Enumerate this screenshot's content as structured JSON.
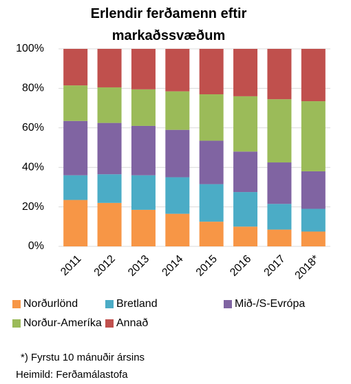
{
  "chart_data": {
    "type": "stacked_bar_100",
    "title": "Erlendir ferðamenn eftir markaðssvæðum",
    "categories": [
      "2011",
      "2012",
      "2013",
      "2014",
      "2015",
      "2016",
      "2017",
      "2018*"
    ],
    "series": [
      {
        "name": "Norðurlönd",
        "color": "#f79646",
        "values": [
          23.5,
          22,
          18.5,
          16.5,
          12.5,
          10,
          8.5,
          7.5
        ]
      },
      {
        "name": "Bretland",
        "color": "#4bacc6",
        "values": [
          12.5,
          14.5,
          17.5,
          18.5,
          19,
          17.5,
          13,
          11.5
        ]
      },
      {
        "name": "Mið-/S-Evrópa",
        "color": "#8064a2",
        "values": [
          27.5,
          26,
          25,
          24,
          22,
          20.5,
          21,
          19
        ]
      },
      {
        "name": "Norður-Ameríka",
        "color": "#9bbb59",
        "values": [
          18,
          18,
          18.5,
          19.5,
          23.5,
          28,
          32,
          35.5
        ]
      },
      {
        "name": "Annað",
        "color": "#c0504d",
        "values": [
          18.5,
          19.5,
          20.5,
          21.5,
          23,
          24,
          25.5,
          26.5
        ]
      }
    ],
    "ylim": [
      0,
      100
    ],
    "yticks": [
      {
        "value": 0,
        "label": "0%"
      },
      {
        "value": 20,
        "label": "20%"
      },
      {
        "value": 40,
        "label": "40%"
      },
      {
        "value": 60,
        "label": "60%"
      },
      {
        "value": 80,
        "label": "80%"
      },
      {
        "value": 100,
        "label": "100%"
      }
    ],
    "grid": true,
    "footnotes": [
      "*) Fyrstu 10 mánuðir ársins",
      "Heimild: Ferðamálastofa"
    ]
  }
}
